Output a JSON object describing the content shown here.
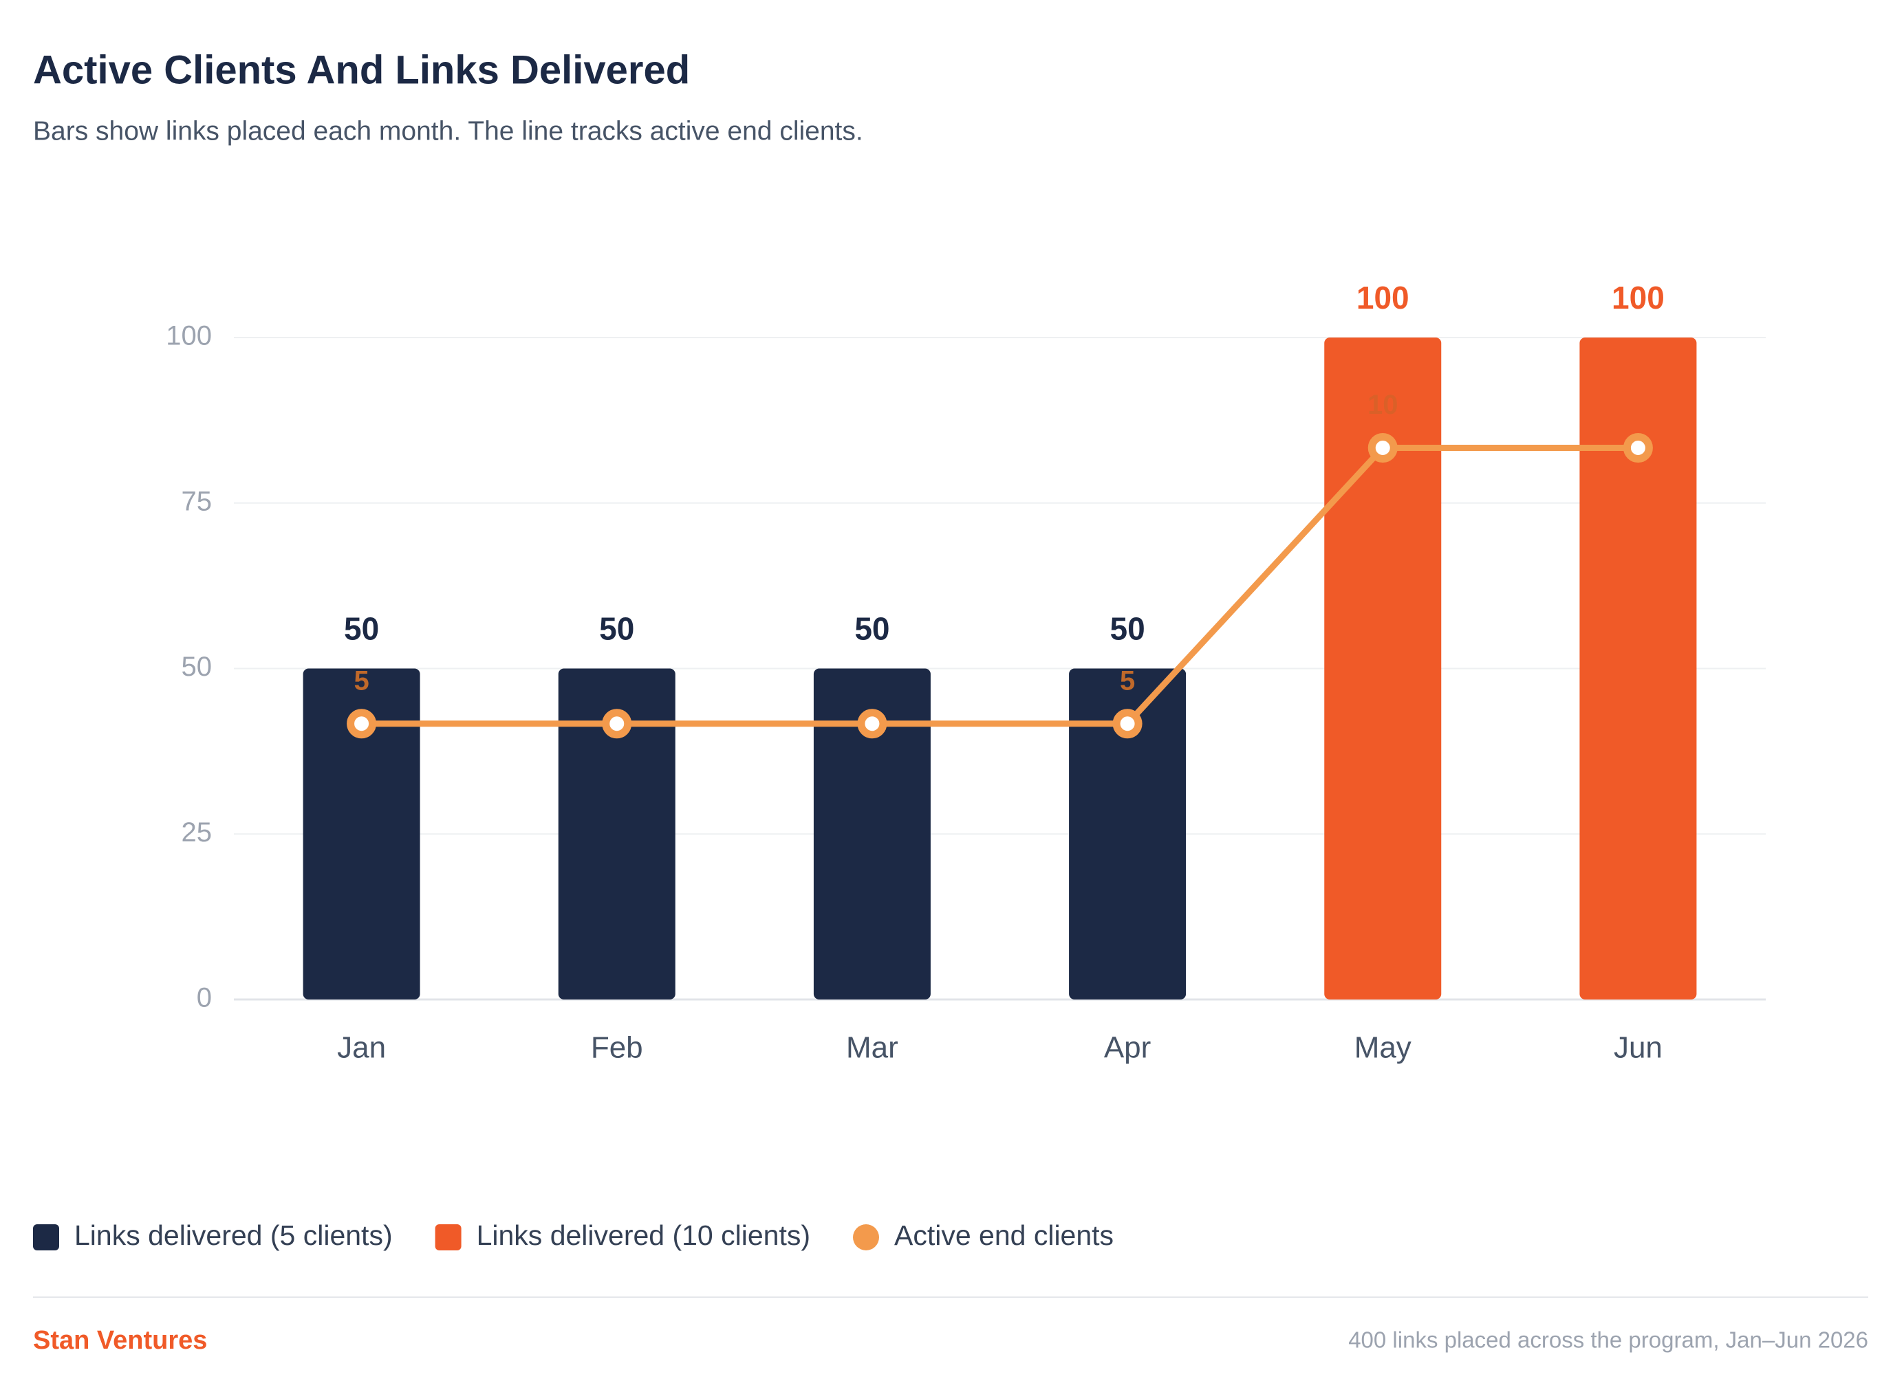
{
  "chart_data": {
    "type": "bar_line",
    "title": "Active Clients And Links Delivered",
    "subtitle": "Bars show links placed each month. The line tracks active end clients.",
    "categories": [
      "Jan",
      "Feb",
      "Mar",
      "Apr",
      "May",
      "Jun"
    ],
    "series": [
      {
        "name": "Links delivered (5 clients)",
        "type": "bar",
        "color": "#1c2945",
        "values": [
          50,
          50,
          50,
          50,
          null,
          null
        ]
      },
      {
        "name": "Links delivered (10 clients)",
        "type": "bar",
        "color": "#f05a28",
        "values": [
          null,
          null,
          null,
          null,
          100,
          100
        ]
      },
      {
        "name": "Active end clients",
        "type": "line",
        "axis": "y2",
        "color": "#f39a4c",
        "values": [
          5,
          5,
          5,
          5,
          10,
          10
        ],
        "value_labels": [
          "5",
          null,
          null,
          "5",
          "10",
          null
        ]
      }
    ],
    "ylim": [
      0,
      100
    ],
    "yticks": [
      0,
      25,
      50,
      75,
      100
    ],
    "y2lim": [
      0,
      12
    ],
    "grid": true,
    "legend": "bottom-left",
    "footer": {
      "brand": "Stan Ventures",
      "note": "400 links placed across the program, Jan–Jun 2026"
    }
  }
}
